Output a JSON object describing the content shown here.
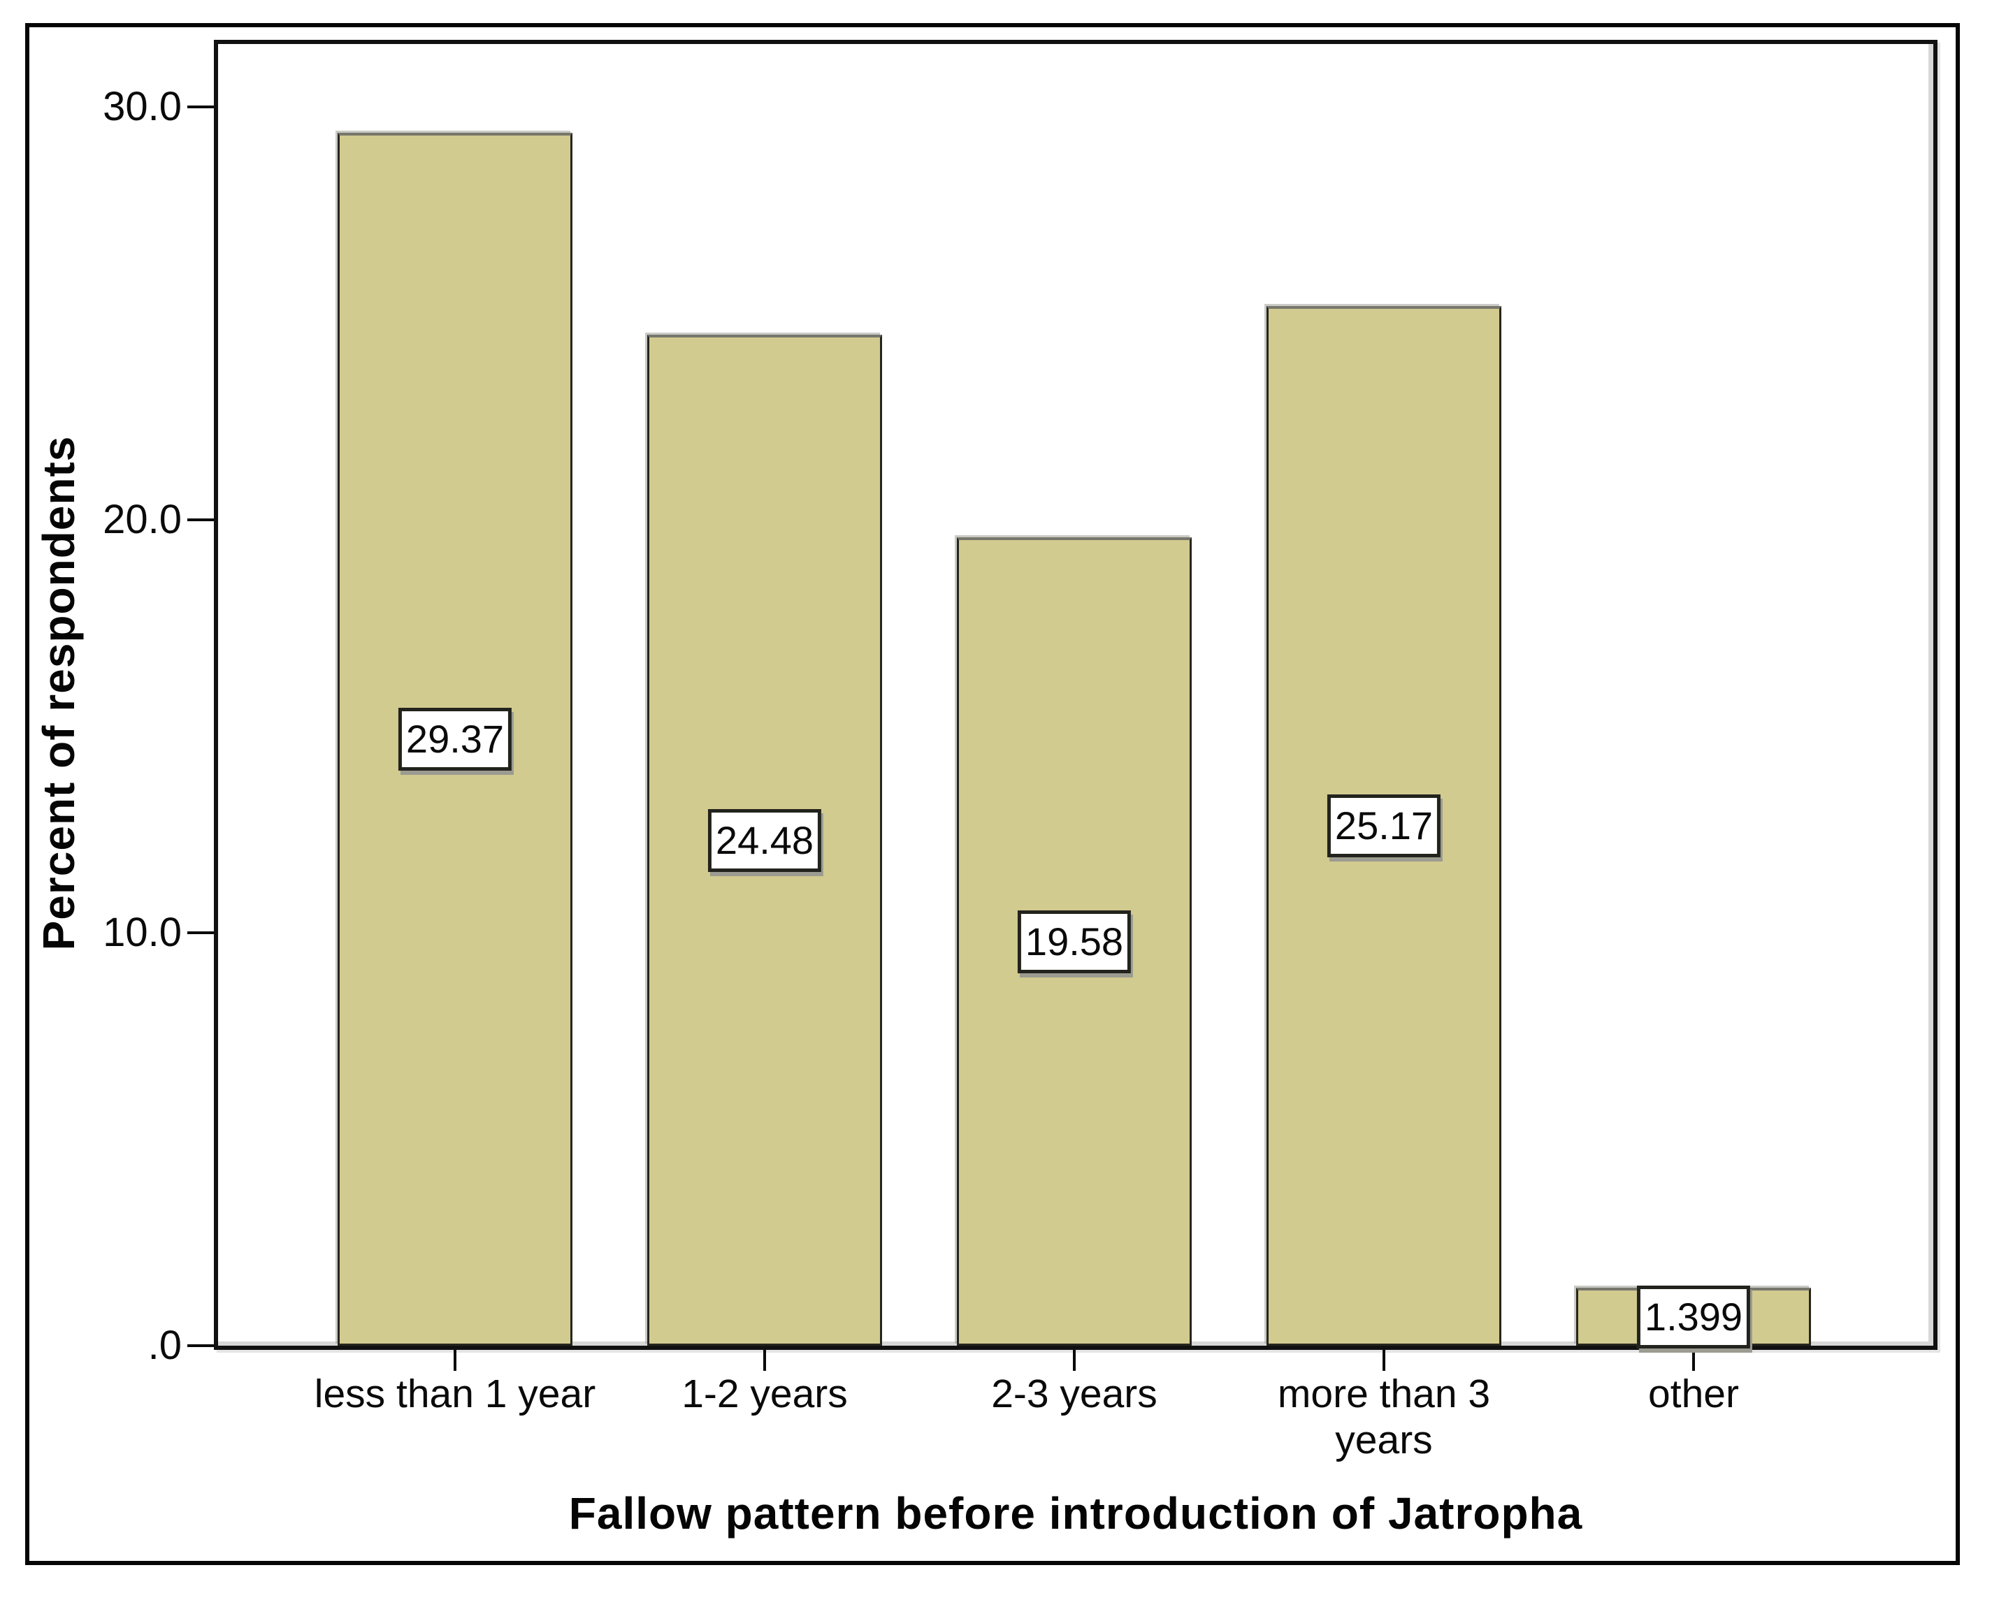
{
  "chart_data": {
    "type": "bar",
    "title": "",
    "categories": [
      "less than 1 year",
      "1-2 years",
      "2-3 years",
      "more than 3 years",
      "other"
    ],
    "values": [
      29.37,
      24.48,
      19.58,
      25.17,
      1.399
    ],
    "value_labels": [
      "29.37",
      "24.48",
      "19.58",
      "25.17",
      "1.399"
    ],
    "xlabel": "Fallow pattern before introduction of Jatropha",
    "ylabel": "Percent of respondents",
    "yticks": [
      {
        "value": 0,
        "label": ".0"
      },
      {
        "value": 10,
        "label": "10.0"
      },
      {
        "value": 20,
        "label": "20.0"
      },
      {
        "value": 30,
        "label": "30.0"
      }
    ],
    "ylim": [
      0,
      31.7
    ],
    "grid": false,
    "legend_position": "none",
    "bar_color": "#d2cb90",
    "bar_border_color": "#26261e",
    "value_box_bg": "#ffffff",
    "value_box_border_color": "#23231d"
  }
}
